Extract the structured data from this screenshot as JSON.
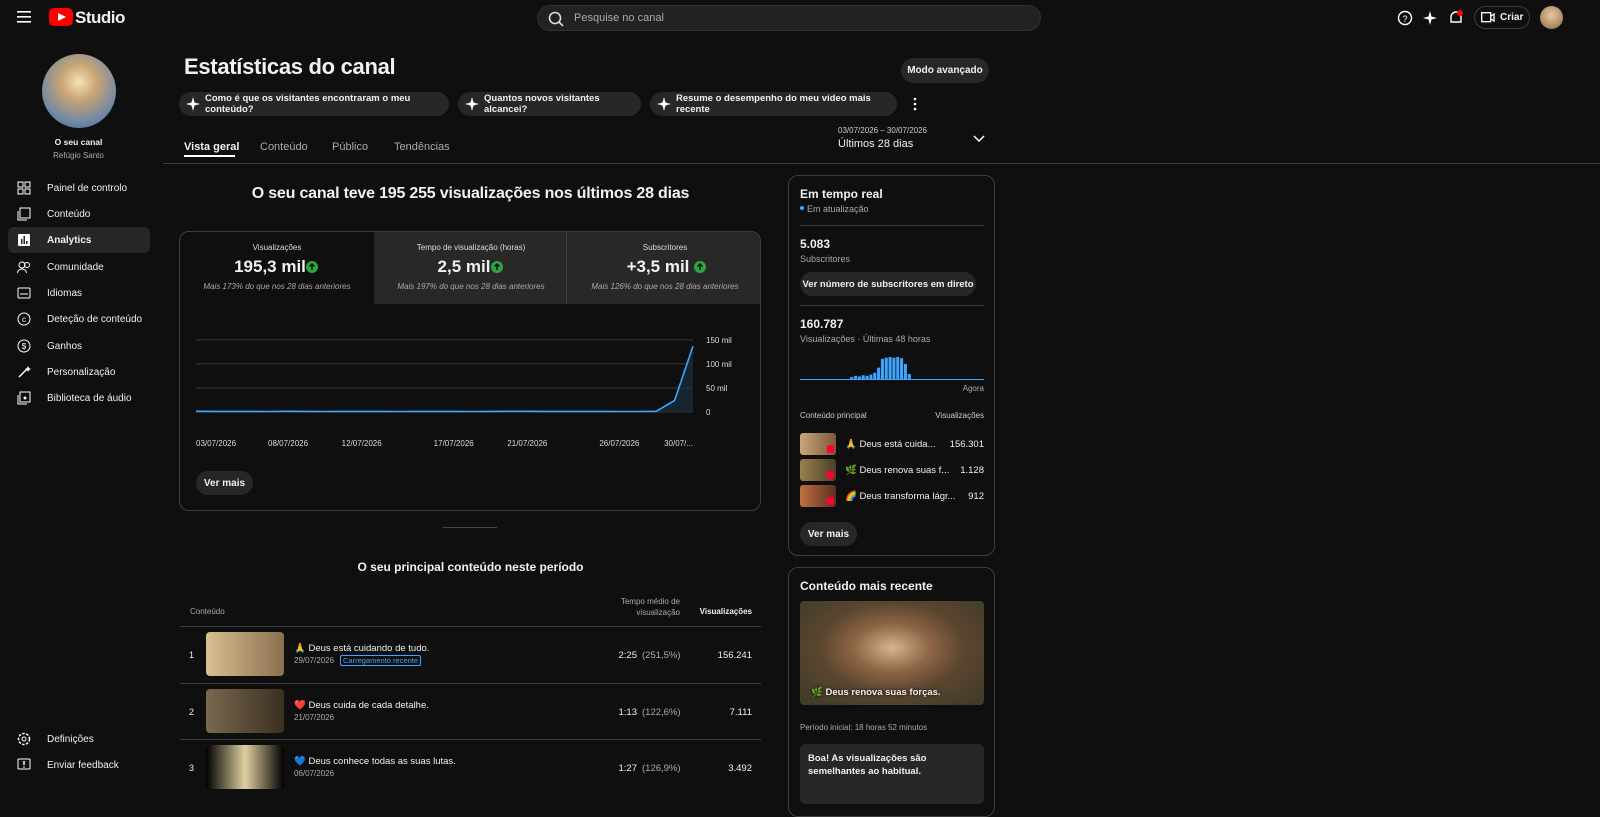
{
  "header": {
    "logo": "Studio",
    "search_placeholder": "Pesquise no canal",
    "create": "Criar"
  },
  "sidebar": {
    "channel_label": "O seu canal",
    "channel_name": "Refúgio Santo",
    "nav": [
      "Painel de controlo",
      "Conteúdo",
      "Analytics",
      "Comunidade",
      "Idiomas",
      "Deteção de conteúdo",
      "Ganhos",
      "Personalização",
      "Biblioteca de áudio"
    ],
    "bottom": [
      "Definições",
      "Enviar feedback"
    ]
  },
  "page": {
    "title": "Estatísticas do canal",
    "advanced_mode": "Modo avançado",
    "prompts": [
      "Como é que os visitantes encontraram o meu conteúdo?",
      "Quantos novos visitantes alcancei?",
      "Resume o desempenho do meu vídeo mais recente"
    ],
    "tabs": [
      "Vista geral",
      "Conteúdo",
      "Público",
      "Tendências"
    ],
    "date_range": "03/07/2026 – 30/07/2026",
    "period": "Últimos 28 dias"
  },
  "summary": "O seu canal teve 195 255 visualizações nos últimos 28 dias",
  "metrics": [
    {
      "label": "Visualizações",
      "value": "195,3 mil",
      "change": "Mais 173% do que nos 28 dias anteriores"
    },
    {
      "label": "Tempo de visualização (horas)",
      "value": "2,5 mil",
      "change": "Mais 197% do que nos 28 dias anteriores"
    },
    {
      "label": "Subscritores",
      "value": "+3,5 mil",
      "change": "Mais 126% do que nos 28 dias anteriores"
    }
  ],
  "chart_data": {
    "type": "line",
    "x": [
      "03/07/2026",
      null,
      null,
      null,
      null,
      "08/07/2026",
      null,
      null,
      null,
      "12/07/2026",
      null,
      null,
      null,
      null,
      "17/07/2026",
      null,
      null,
      null,
      "21/07/2026",
      null,
      null,
      null,
      null,
      "26/07/2026",
      null,
      null,
      null,
      "30/07/..."
    ],
    "series": [
      {
        "name": "Visualizações",
        "color": "#3ea6ff",
        "values": [
          1400,
          1300,
          1200,
          1300,
          1100,
          1400,
          1200,
          1100,
          1200,
          1300,
          1200,
          1100,
          1200,
          1300,
          1200,
          1100,
          1300,
          1400,
          1500,
          1300,
          1200,
          1300,
          1200,
          1100,
          1000,
          1500,
          24000,
          137000
        ]
      }
    ],
    "ylim": [
      0,
      160000
    ],
    "yticks": [
      0,
      {
        "value": 50000,
        "label": "50 mil"
      },
      {
        "value": 100000,
        "label": "100 mil"
      },
      {
        "value": 150000,
        "label": "150 mil"
      }
    ],
    "grid": true,
    "more": "Ver mais"
  },
  "realtime": {
    "title": "Em tempo real",
    "status": "Em atualização",
    "subscribers": "5.083",
    "subscribers_label": "Subscritores",
    "live_button": "Ver número de subscritores em direto",
    "views": "160.787",
    "views_label": "Visualizações · Últimas 48 horas",
    "hourly_views": [
      0,
      0,
      0,
      0,
      0,
      0,
      0,
      0,
      0,
      0,
      0,
      0,
      0,
      1500,
      2500,
      2000,
      3000,
      2500,
      3500,
      5000,
      9000,
      16000,
      17000,
      17500,
      17000,
      17500,
      16500,
      12000,
      4000,
      0,
      0,
      0,
      0,
      0,
      0,
      0,
      0,
      0,
      0,
      0,
      0,
      0,
      0,
      0,
      0,
      0,
      0,
      0
    ],
    "now": "Agora",
    "top_header": [
      "Conteúdo principal",
      "Visualizações"
    ],
    "top": [
      {
        "title": "🙏 Deus está cuida...",
        "views": "156.301"
      },
      {
        "title": "🌿 Deus renova suas f...",
        "views": "1.128"
      },
      {
        "title": "🌈 Deus transforma lágr...",
        "views": "912"
      }
    ],
    "more": "Ver mais"
  },
  "latest": {
    "title": "Conteúdo mais recente",
    "video_title": "🌿 Deus renova suas forças.",
    "period": "Período inicial: 18 horas 52 minutos",
    "message": "Boa! As visualizações são semelhantes ao habitual."
  },
  "top_content": {
    "title": "O seu principal conteúdo neste período",
    "headers": [
      "Conteúdo",
      "Tempo médio de visualização",
      "Visualizações"
    ],
    "rows": [
      {
        "rank": "1",
        "title": "🙏 Deus está cuidando de tudo.",
        "date": "29/07/2026",
        "badge": "Carregamento recente",
        "avg": "2:25",
        "pct": "(251,5%)",
        "views": "156.241"
      },
      {
        "rank": "2",
        "title": "❤️ Deus cuida de cada detalhe.",
        "date": "21/07/2026",
        "avg": "1:13",
        "pct": "(122,6%)",
        "views": "7.111"
      },
      {
        "rank": "3",
        "title": "💙 Deus conhece todas as suas lutas.",
        "date": "06/07/2026",
        "avg": "1:27",
        "pct": "(126,9%)",
        "views": "3.492"
      }
    ]
  }
}
